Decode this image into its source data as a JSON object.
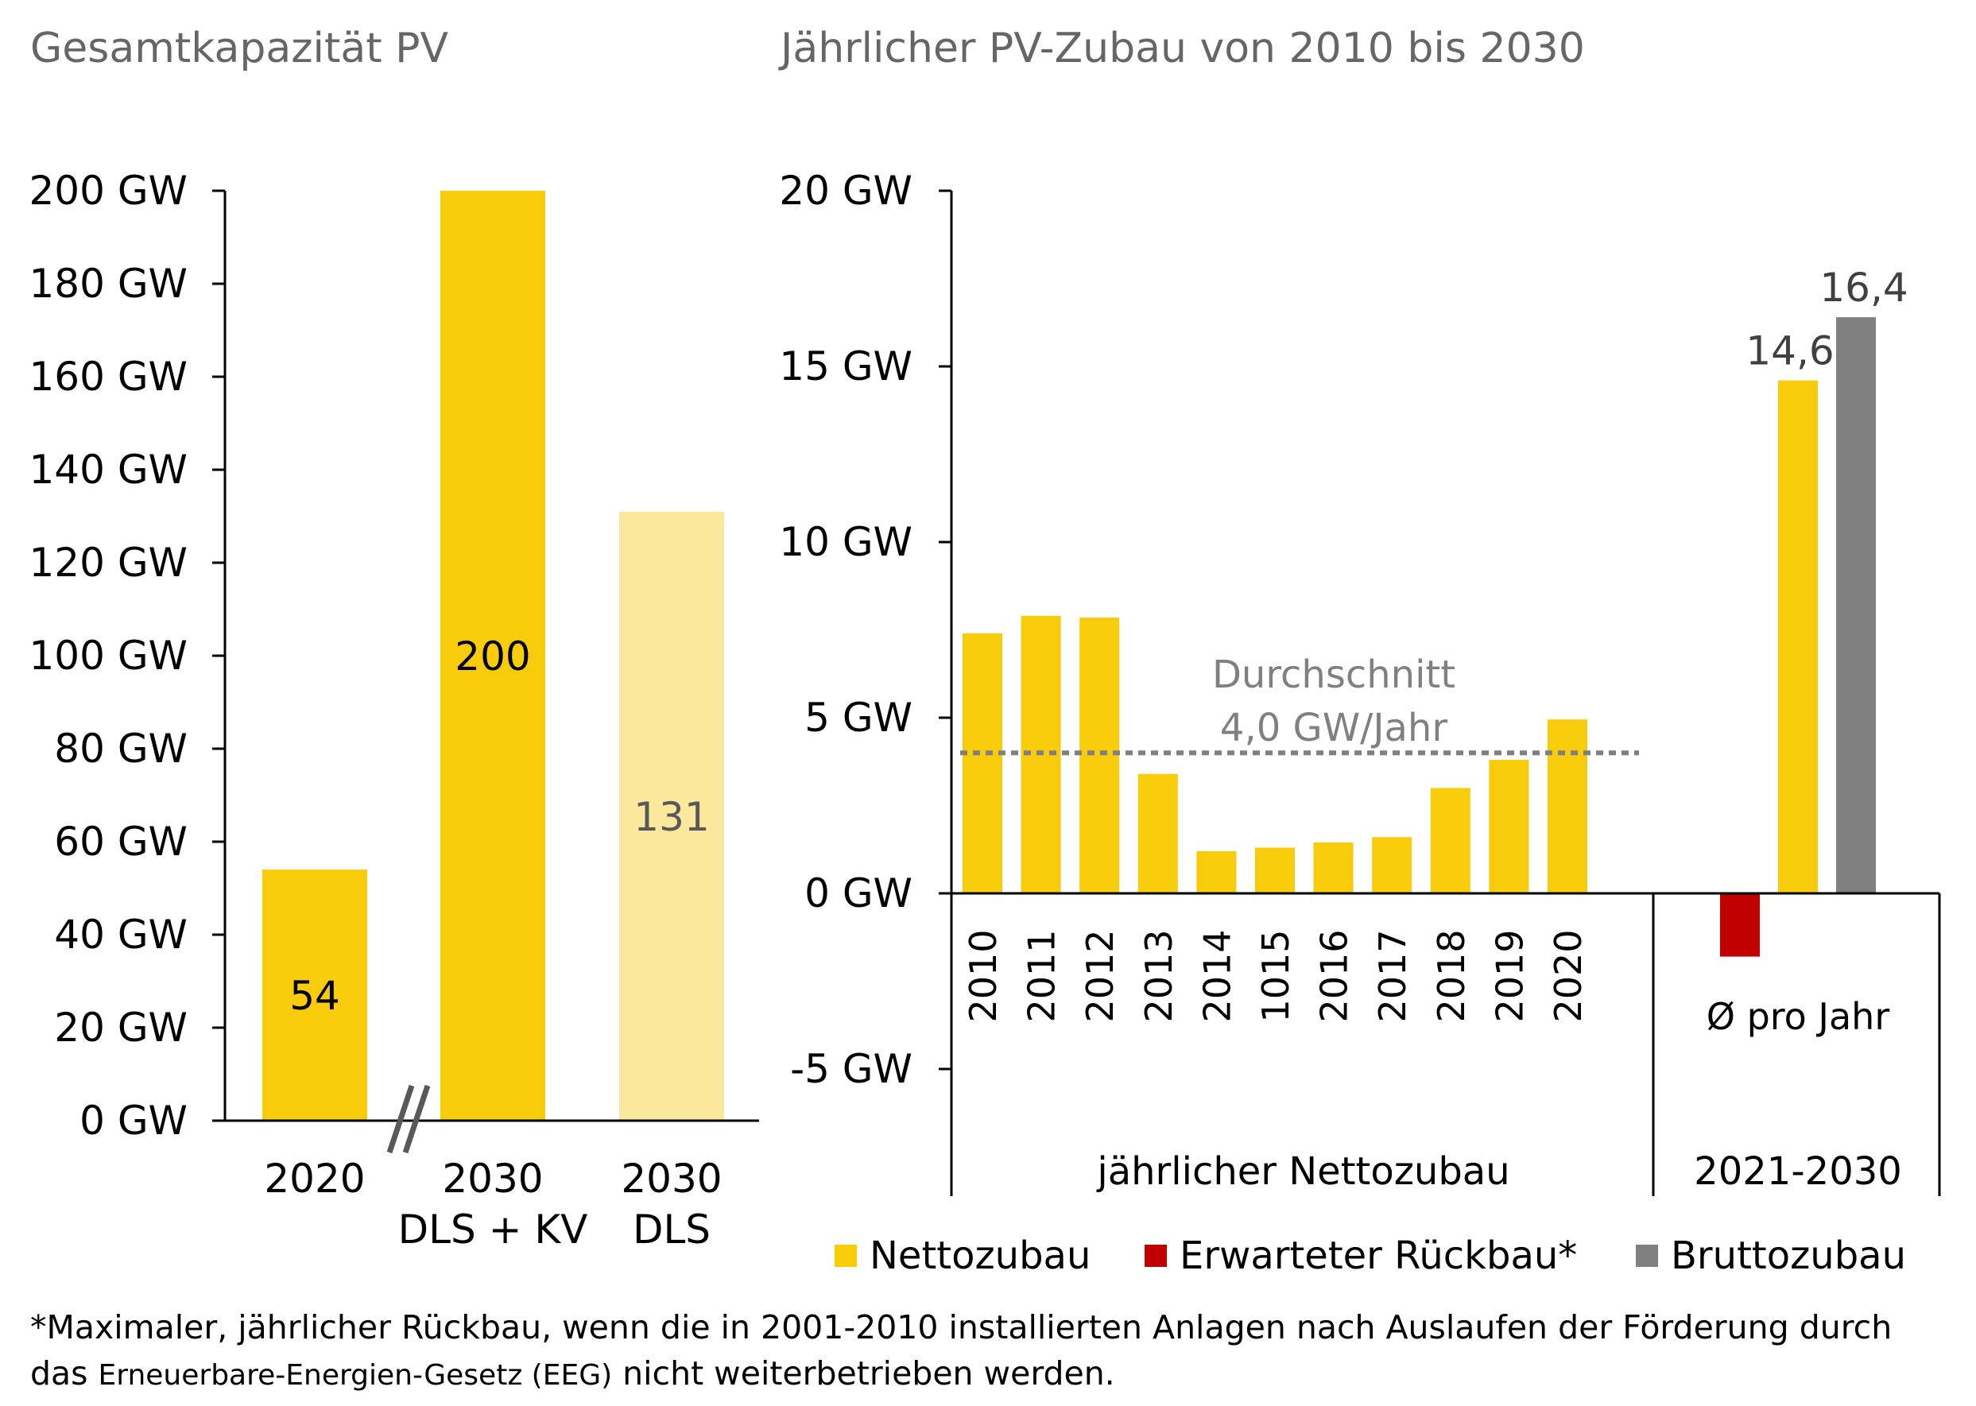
{
  "colors": {
    "nettozubau": "#F9CC0B",
    "light_yellow": "#FBE89D",
    "rueckbau": "#C00000",
    "bruttozubau": "#808080",
    "title_text": "#666666",
    "axis_text": "#000000",
    "annotation_text": "#808080"
  },
  "chart_data": [
    {
      "type": "bar",
      "title": "Gesamtkapazität PV",
      "categories": [
        [
          "2020"
        ],
        [
          "2030",
          "DLS + KV"
        ],
        [
          "2030",
          "DLS"
        ]
      ],
      "values": [
        54,
        200,
        131
      ],
      "value_labels": [
        "54",
        "200",
        "131"
      ],
      "bar_colors": [
        "#F9CC0B",
        "#F9CC0B",
        "#FBE89D"
      ],
      "ylim": [
        0,
        200
      ],
      "yticks": [
        {
          "value": 0,
          "label": "0 GW"
        },
        {
          "value": 20,
          "label": "20 GW"
        },
        {
          "value": 40,
          "label": "40 GW"
        },
        {
          "value": 60,
          "label": "60 GW"
        },
        {
          "value": 80,
          "label": "80 GW"
        },
        {
          "value": 100,
          "label": "100 GW"
        },
        {
          "value": 120,
          "label": "120 GW"
        },
        {
          "value": 140,
          "label": "140 GW"
        },
        {
          "value": 160,
          "label": "160 GW"
        },
        {
          "value": 180,
          "label": "180 GW"
        },
        {
          "value": 200,
          "label": "200 GW"
        }
      ],
      "axis_break": "between 2020 and 2030",
      "grid": false
    },
    {
      "type": "bar",
      "title": "Jährlicher PV-Zubau von 2010 bis 2030",
      "ylim": [
        -5,
        20
      ],
      "yticks": [
        {
          "value": -5,
          "label": "-5 GW"
        },
        {
          "value": 0,
          "label": "0 GW"
        },
        {
          "value": 5,
          "label": "5 GW"
        },
        {
          "value": 10,
          "label": "10 GW"
        },
        {
          "value": 15,
          "label": "15 GW"
        },
        {
          "value": 20,
          "label": "20 GW"
        }
      ],
      "categories": [
        "2010",
        "2011",
        "2012",
        "2013",
        "2014",
        "1015",
        "2016",
        "2017",
        "2018",
        "2019",
        "2020"
      ],
      "series": [
        {
          "name": "Nettozubau",
          "values": [
            7.4,
            7.9,
            7.85,
            3.4,
            1.2,
            1.3,
            1.45,
            1.6,
            3.0,
            3.8,
            4.95
          ]
        }
      ],
      "group_label": "jährlicher Nettozubau",
      "average": {
        "value": 4.0,
        "label_lines": [
          "Durchschnitt",
          "4,0 GW/Jahr"
        ]
      },
      "summary_group": {
        "category": "Ø pro Jahr",
        "group_label": "2021-2030",
        "bars": [
          {
            "series": "Erwarteter Rückbau*",
            "value": -1.8,
            "label": ""
          },
          {
            "series": "Nettozubau",
            "value": 14.6,
            "label": "14,6"
          },
          {
            "series": "Bruttozubau",
            "value": 16.4,
            "label": "16,4"
          }
        ]
      },
      "legend": {
        "placement": "bottom",
        "entries": [
          {
            "name": "Nettozubau",
            "color": "#F9CC0B"
          },
          {
            "name": "Erwarteter Rückbau*",
            "color": "#C00000"
          },
          {
            "name": "Bruttozubau",
            "color": "#808080"
          }
        ]
      },
      "grid": false
    }
  ],
  "footnote": {
    "line1": "*Maximaler, jährlicher Rückbau, wenn die in 2001-2010 installierten Anlagen nach Auslaufen der Förderung durch",
    "line2_prefix": "das ",
    "line2_small": "Erneuerbare-Energien-Gesetz (EEG)",
    "line2_suffix": " nicht weiterbetrieben werden."
  }
}
